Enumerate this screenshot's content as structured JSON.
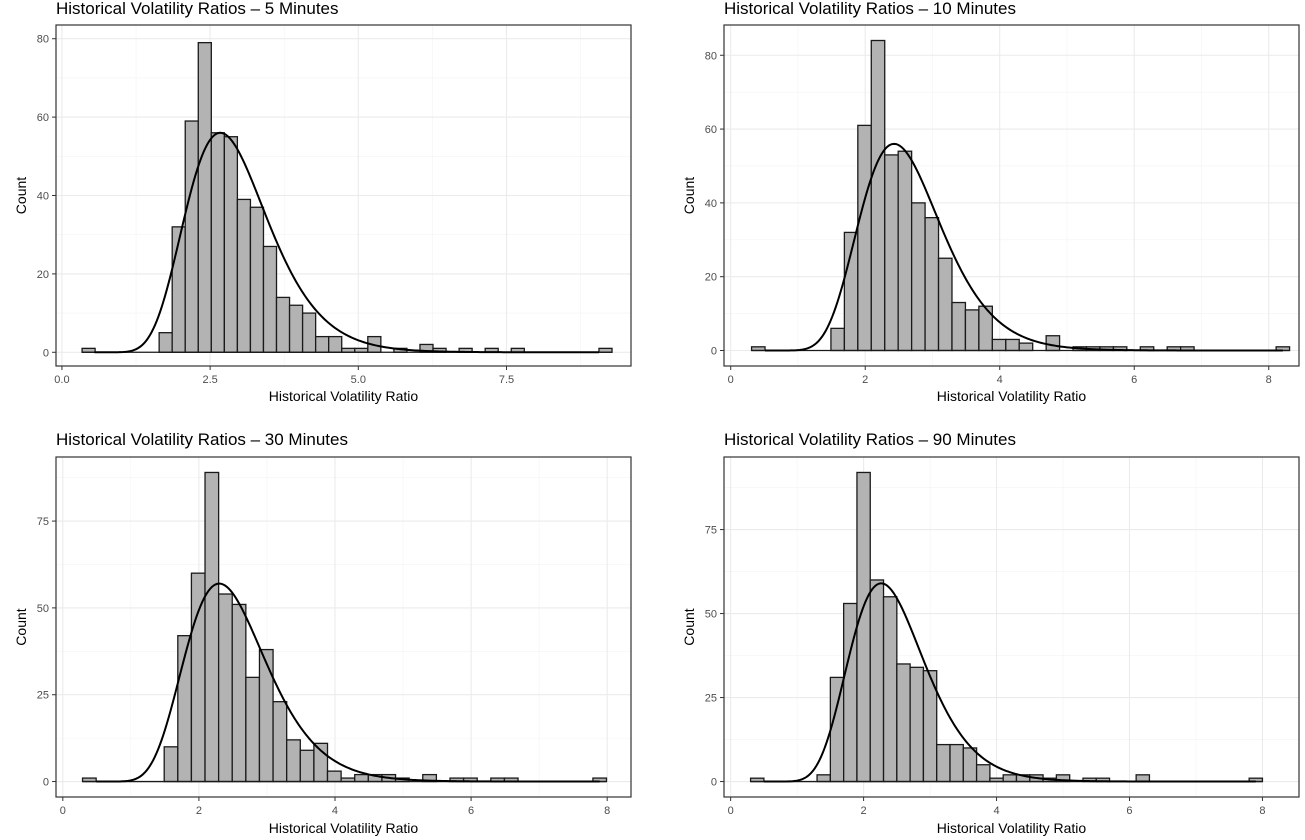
{
  "chart_data": [
    {
      "type": "bar",
      "title": "Historical Volatility Ratios – 5 Minutes",
      "xlabel": "Historical Volatility Ratio",
      "ylabel": "Count",
      "xlim": [
        -0.1,
        9.6
      ],
      "ylim": [
        -3.5,
        83.5
      ],
      "xticks": [
        0.0,
        2.5,
        5.0,
        7.5
      ],
      "xtick_labels": [
        "0.0",
        "2.5",
        "5.0",
        "7.5"
      ],
      "yticks": [
        0,
        20,
        40,
        60,
        80
      ],
      "ytick_labels": [
        "0",
        "20",
        "40",
        "60",
        "80"
      ],
      "bin_width": 0.22,
      "bins": [
        {
          "x": 0.45,
          "count": 1
        },
        {
          "x": 1.75,
          "count": 5
        },
        {
          "x": 1.97,
          "count": 32
        },
        {
          "x": 2.19,
          "count": 59
        },
        {
          "x": 2.41,
          "count": 79
        },
        {
          "x": 2.63,
          "count": 56
        },
        {
          "x": 2.85,
          "count": 55
        },
        {
          "x": 3.07,
          "count": 39
        },
        {
          "x": 3.29,
          "count": 37
        },
        {
          "x": 3.51,
          "count": 27
        },
        {
          "x": 3.73,
          "count": 14
        },
        {
          "x": 3.95,
          "count": 12
        },
        {
          "x": 4.17,
          "count": 10
        },
        {
          "x": 4.39,
          "count": 4
        },
        {
          "x": 4.61,
          "count": 4
        },
        {
          "x": 4.83,
          "count": 1
        },
        {
          "x": 5.05,
          "count": 1
        },
        {
          "x": 5.27,
          "count": 4
        },
        {
          "x": 5.71,
          "count": 1
        },
        {
          "x": 6.15,
          "count": 2
        },
        {
          "x": 6.37,
          "count": 1
        },
        {
          "x": 6.81,
          "count": 1
        },
        {
          "x": 7.25,
          "count": 1
        },
        {
          "x": 7.69,
          "count": 1
        },
        {
          "x": 9.17,
          "count": 1
        }
      ],
      "density_curve": {
        "type": "lognormal-fit",
        "peak_x": 2.65,
        "peak_count": 56,
        "meanlog": 1.05,
        "sdlog": 0.26,
        "x_range": [
          0.55,
          9.06
        ]
      },
      "grid": true,
      "legend": "none"
    },
    {
      "type": "bar",
      "title": "Historical Volatility Ratios – 10 Minutes",
      "xlabel": "Historical Volatility Ratio",
      "ylabel": "Count",
      "xlim": [
        -0.1,
        8.45
      ],
      "ylim": [
        -4.2,
        88.2
      ],
      "xticks": [
        0,
        2,
        4,
        6,
        8
      ],
      "xtick_labels": [
        "0",
        "2",
        "4",
        "6",
        "8"
      ],
      "yticks": [
        0,
        20,
        40,
        60,
        80
      ],
      "ytick_labels": [
        "0",
        "20",
        "40",
        "60",
        "80"
      ],
      "bin_width": 0.2,
      "bins": [
        {
          "x": 0.41,
          "count": 1
        },
        {
          "x": 1.59,
          "count": 6
        },
        {
          "x": 1.79,
          "count": 32
        },
        {
          "x": 1.99,
          "count": 61
        },
        {
          "x": 2.19,
          "count": 84
        },
        {
          "x": 2.39,
          "count": 53
        },
        {
          "x": 2.59,
          "count": 54
        },
        {
          "x": 2.79,
          "count": 40
        },
        {
          "x": 2.99,
          "count": 36
        },
        {
          "x": 3.19,
          "count": 25
        },
        {
          "x": 3.39,
          "count": 13
        },
        {
          "x": 3.59,
          "count": 11
        },
        {
          "x": 3.79,
          "count": 12
        },
        {
          "x": 3.99,
          "count": 3
        },
        {
          "x": 4.19,
          "count": 3
        },
        {
          "x": 4.39,
          "count": 2
        },
        {
          "x": 4.79,
          "count": 4
        },
        {
          "x": 5.19,
          "count": 1
        },
        {
          "x": 5.39,
          "count": 1
        },
        {
          "x": 5.59,
          "count": 1
        },
        {
          "x": 5.79,
          "count": 1
        },
        {
          "x": 6.19,
          "count": 1
        },
        {
          "x": 6.59,
          "count": 1
        },
        {
          "x": 6.79,
          "count": 1
        },
        {
          "x": 8.21,
          "count": 1
        }
      ],
      "density_curve": {
        "type": "lognormal-fit",
        "peak_x": 2.38,
        "peak_count": 56,
        "meanlog": 0.95,
        "sdlog": 0.25,
        "x_range": [
          0.51,
          8.21
        ]
      },
      "grid": true,
      "legend": "none"
    },
    {
      "type": "bar",
      "title": "Historical Volatility Ratios – 30 Minutes",
      "xlabel": "Historical Volatility Ratio",
      "ylabel": "Count",
      "xlim": [
        -0.1,
        8.35
      ],
      "ylim": [
        -4.45,
        93.45
      ],
      "xticks": [
        0,
        2,
        4,
        6,
        8
      ],
      "xtick_labels": [
        "0",
        "2",
        "4",
        "6",
        "8"
      ],
      "yticks": [
        0,
        25,
        50,
        75
      ],
      "ytick_labels": [
        "0",
        "25",
        "50",
        "75"
      ],
      "bin_width": 0.2,
      "bins": [
        {
          "x": 0.39,
          "count": 1
        },
        {
          "x": 1.59,
          "count": 10
        },
        {
          "x": 1.79,
          "count": 42
        },
        {
          "x": 1.99,
          "count": 60
        },
        {
          "x": 2.19,
          "count": 89
        },
        {
          "x": 2.39,
          "count": 54
        },
        {
          "x": 2.59,
          "count": 51
        },
        {
          "x": 2.79,
          "count": 30
        },
        {
          "x": 2.99,
          "count": 38
        },
        {
          "x": 3.19,
          "count": 23
        },
        {
          "x": 3.39,
          "count": 12
        },
        {
          "x": 3.59,
          "count": 9
        },
        {
          "x": 3.79,
          "count": 11
        },
        {
          "x": 3.99,
          "count": 3
        },
        {
          "x": 4.19,
          "count": 1
        },
        {
          "x": 4.39,
          "count": 2
        },
        {
          "x": 4.59,
          "count": 2
        },
        {
          "x": 4.79,
          "count": 2
        },
        {
          "x": 4.99,
          "count": 1
        },
        {
          "x": 5.39,
          "count": 2
        },
        {
          "x": 5.79,
          "count": 1
        },
        {
          "x": 5.99,
          "count": 1
        },
        {
          "x": 6.39,
          "count": 1
        },
        {
          "x": 6.59,
          "count": 1
        },
        {
          "x": 7.89,
          "count": 1
        }
      ],
      "density_curve": {
        "type": "lognormal-fit",
        "peak_x": 2.25,
        "peak_count": 57,
        "meanlog": 0.9,
        "sdlog": 0.26,
        "x_range": [
          0.49,
          7.89
        ]
      },
      "grid": true,
      "legend": "none"
    },
    {
      "type": "bar",
      "title": "Historical Volatility Ratios – 90 Minutes",
      "xlabel": "Historical Volatility Ratio",
      "ylabel": "Count",
      "xlim": [
        -0.1,
        8.55
      ],
      "ylim": [
        -4.6,
        96.6
      ],
      "xticks": [
        0,
        2,
        4,
        6,
        8
      ],
      "xtick_labels": [
        "0",
        "2",
        "4",
        "6",
        "8"
      ],
      "yticks": [
        0,
        25,
        50,
        75
      ],
      "ytick_labels": [
        "0",
        "25",
        "50",
        "75"
      ],
      "bin_width": 0.2,
      "bins": [
        {
          "x": 0.4,
          "count": 1
        },
        {
          "x": 1.4,
          "count": 2
        },
        {
          "x": 1.6,
          "count": 31
        },
        {
          "x": 1.8,
          "count": 53
        },
        {
          "x": 2.0,
          "count": 92
        },
        {
          "x": 2.2,
          "count": 60
        },
        {
          "x": 2.4,
          "count": 55
        },
        {
          "x": 2.6,
          "count": 35
        },
        {
          "x": 2.8,
          "count": 34
        },
        {
          "x": 3.0,
          "count": 33
        },
        {
          "x": 3.2,
          "count": 11
        },
        {
          "x": 3.4,
          "count": 11
        },
        {
          "x": 3.6,
          "count": 10
        },
        {
          "x": 3.8,
          "count": 5
        },
        {
          "x": 4.0,
          "count": 1
        },
        {
          "x": 4.2,
          "count": 2
        },
        {
          "x": 4.4,
          "count": 2
        },
        {
          "x": 4.6,
          "count": 2
        },
        {
          "x": 4.8,
          "count": 1
        },
        {
          "x": 5.0,
          "count": 2
        },
        {
          "x": 5.4,
          "count": 1
        },
        {
          "x": 5.6,
          "count": 1
        },
        {
          "x": 6.2,
          "count": 2
        },
        {
          "x": 7.9,
          "count": 1
        }
      ],
      "density_curve": {
        "type": "lognormal-fit",
        "peak_x": 2.22,
        "peak_count": 59,
        "meanlog": 0.88,
        "sdlog": 0.25,
        "x_range": [
          0.5,
          7.9
        ]
      },
      "grid": true,
      "legend": "none"
    }
  ]
}
